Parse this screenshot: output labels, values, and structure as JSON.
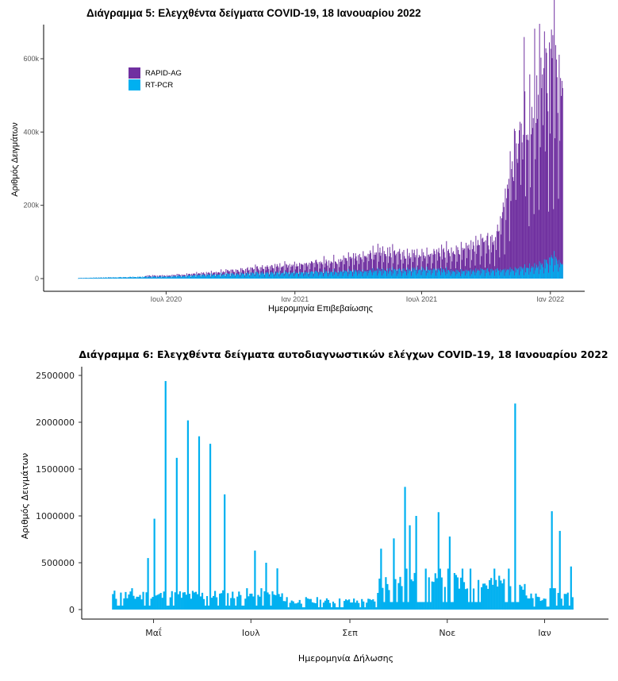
{
  "chart_data": [
    {
      "type": "bar",
      "stacked": true,
      "title": "Διάγραμμα 5: Ελεγχθέντα δείγματα COVID-19, 18 Ιανουαρίου 2022",
      "xlabel": "Ημερομηνία Επιβεβαίωσης",
      "ylabel": "Αριθμός Δειγμάτων",
      "x_ticks": [
        "Ιουλ 2020",
        "Ιαν 2021",
        "Ιουλ 2021",
        "Ιαν 2022"
      ],
      "y_ticks": [
        "0",
        "200k",
        "400k",
        "600k"
      ],
      "ylim": [
        0,
        690000
      ],
      "x_range": [
        "2020-02-26",
        "2022-01-18"
      ],
      "legend_position": "top-left",
      "grid": false,
      "series": [
        {
          "name": "RAPID-AG",
          "color": "#7030A0"
        },
        {
          "name": "RT-PCR",
          "color": "#00B0F0"
        }
      ],
      "daily_values": {
        "note_units": "tests per day, approximate weekly peak levels",
        "rapid_ag_peaks": [
          [
            "2020-07-01",
            3000
          ],
          [
            "2020-09-01",
            6000
          ],
          [
            "2020-11-01",
            15000
          ],
          [
            "2021-01-01",
            25000
          ],
          [
            "2021-03-01",
            35000
          ],
          [
            "2021-05-01",
            60000
          ],
          [
            "2021-07-01",
            45000
          ],
          [
            "2021-09-01",
            75000
          ],
          [
            "2021-10-15",
            100000
          ],
          [
            "2021-11-10",
            380000
          ],
          [
            "2021-12-01",
            450000
          ],
          [
            "2021-12-20",
            600000
          ],
          [
            "2022-01-05",
            640000
          ],
          [
            "2022-01-18",
            570000
          ]
        ],
        "rt_pcr_peaks": [
          [
            "2020-03-01",
            2000
          ],
          [
            "2020-07-01",
            7000
          ],
          [
            "2020-11-01",
            18000
          ],
          [
            "2021-01-01",
            20000
          ],
          [
            "2021-04-01",
            25000
          ],
          [
            "2021-07-01",
            30000
          ],
          [
            "2021-09-01",
            25000
          ],
          [
            "2021-11-01",
            30000
          ],
          [
            "2021-12-15",
            40000
          ],
          [
            "2022-01-05",
            70000
          ],
          [
            "2022-01-18",
            45000
          ]
        ]
      }
    },
    {
      "type": "bar",
      "title": "Διάγραμμα 6: Ελεγχθέντα δείγματα αυτοδιαγνωστικών ελέγχων COVID-19, 18 Ιανουαρίου 2022",
      "xlabel": "Ημερομηνία Δήλωσης",
      "ylabel": "Αριθμός Δειγμάτων",
      "x_ticks": [
        "Μαΐ",
        "Ιουλ",
        "Σεπ",
        "Νοε",
        "Ιαν"
      ],
      "y_ticks": [
        "0",
        "500000",
        "1000000",
        "1500000",
        "2000000",
        "2500000"
      ],
      "ylim": [
        0,
        2600000
      ],
      "x_range": [
        "2021-04-05",
        "2022-01-18"
      ],
      "grid": false,
      "color": "#00B0F0",
      "notable_values": [
        [
          "2021-04-27",
          550000
        ],
        [
          "2021-05-01",
          970000
        ],
        [
          "2021-05-08",
          2440000
        ],
        [
          "2021-05-15",
          1620000
        ],
        [
          "2021-05-22",
          2020000
        ],
        [
          "2021-05-29",
          1850000
        ],
        [
          "2021-06-05",
          1770000
        ],
        [
          "2021-06-14",
          1230000
        ],
        [
          "2021-07-03",
          630000
        ],
        [
          "2021-07-10",
          500000
        ],
        [
          "2021-07-17",
          440000
        ],
        [
          "2021-09-20",
          650000
        ],
        [
          "2021-09-28",
          760000
        ],
        [
          "2021-10-05",
          1310000
        ],
        [
          "2021-10-08",
          900000
        ],
        [
          "2021-10-12",
          1000000
        ],
        [
          "2021-10-26",
          1040000
        ],
        [
          "2021-11-02",
          780000
        ],
        [
          "2021-12-13",
          2200000
        ],
        [
          "2022-01-05",
          1050000
        ],
        [
          "2022-01-10",
          840000
        ],
        [
          "2022-01-17",
          460000
        ]
      ]
    }
  ]
}
